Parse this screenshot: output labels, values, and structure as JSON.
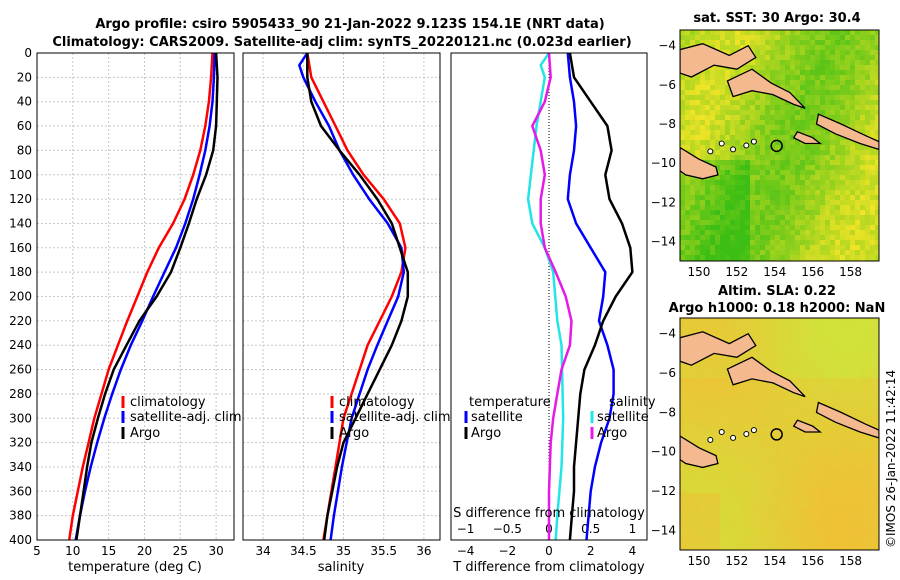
{
  "title_line1": "Argo profile: csiro 5905433_90 21-Jan-2022 9.123S 154.1E (NRT data)",
  "title_line2": "Climatology: CARS2009. Satellite-adj clim: synTS_20220121.nc (0.023d earlier)",
  "copyright": "©IMOS 26-Jan-2022 11:42:14",
  "colors": {
    "climatology": "#ff0000",
    "satellite": "#0000ff",
    "argo": "#000000",
    "s_diff_sat": "#22e5e5",
    "s_diff_argo": "#e619e6"
  },
  "chart_data": [
    {
      "type": "line",
      "name": "temperature-panel",
      "xlabel": "temperature (deg C)",
      "xlim": [
        5,
        32.5
      ],
      "ylim": [
        400,
        0
      ],
      "x_ticks": [
        5,
        10,
        15,
        20,
        25,
        30
      ],
      "y_ticks": [
        0,
        20,
        40,
        60,
        80,
        100,
        120,
        140,
        160,
        180,
        200,
        220,
        240,
        260,
        280,
        300,
        320,
        340,
        360,
        380,
        400
      ],
      "grid": true,
      "legend": [
        "climatology",
        "satellite-adj. clim",
        "Argo"
      ],
      "series": [
        {
          "name": "climatology",
          "color_key": "climatology",
          "points": [
            [
              29.5,
              0
            ],
            [
              29.3,
              20
            ],
            [
              29.0,
              40
            ],
            [
              28.5,
              60
            ],
            [
              27.8,
              80
            ],
            [
              26.8,
              100
            ],
            [
              25.6,
              120
            ],
            [
              24.0,
              140
            ],
            [
              22.0,
              160
            ],
            [
              20.4,
              180
            ],
            [
              19.0,
              200
            ],
            [
              17.6,
              220
            ],
            [
              16.3,
              240
            ],
            [
              15.0,
              260
            ],
            [
              14.0,
              280
            ],
            [
              13.0,
              300
            ],
            [
              12.2,
              320
            ],
            [
              11.4,
              340
            ],
            [
              10.7,
              360
            ],
            [
              10.0,
              380
            ],
            [
              9.5,
              400
            ]
          ]
        },
        {
          "name": "satellite",
          "color_key": "satellite",
          "points": [
            [
              29.8,
              0
            ],
            [
              29.7,
              20
            ],
            [
              29.5,
              40
            ],
            [
              29.1,
              60
            ],
            [
              28.5,
              80
            ],
            [
              27.7,
              100
            ],
            [
              26.8,
              120
            ],
            [
              25.7,
              140
            ],
            [
              24.4,
              160
            ],
            [
              22.8,
              180
            ],
            [
              21.2,
              200
            ],
            [
              19.7,
              220
            ],
            [
              18.1,
              240
            ],
            [
              16.7,
              260
            ],
            [
              15.5,
              280
            ],
            [
              14.4,
              300
            ],
            [
              13.4,
              320
            ],
            [
              12.5,
              340
            ],
            [
              11.7,
              360
            ],
            [
              11.0,
              380
            ],
            [
              10.4,
              400
            ]
          ]
        },
        {
          "name": "Argo",
          "color_key": "argo",
          "points": [
            [
              30.0,
              0
            ],
            [
              30.2,
              20
            ],
            [
              30.1,
              40
            ],
            [
              30.0,
              60
            ],
            [
              29.6,
              80
            ],
            [
              28.6,
              100
            ],
            [
              27.3,
              120
            ],
            [
              26.2,
              140
            ],
            [
              25.0,
              160
            ],
            [
              23.7,
              180
            ],
            [
              21.7,
              200
            ],
            [
              19.3,
              220
            ],
            [
              17.5,
              240
            ],
            [
              15.7,
              260
            ],
            [
              14.5,
              280
            ],
            [
              13.5,
              300
            ],
            [
              12.6,
              320
            ],
            [
              12.0,
              340
            ],
            [
              11.5,
              360
            ],
            [
              11.0,
              380
            ],
            [
              10.5,
              400
            ]
          ]
        }
      ]
    },
    {
      "type": "line",
      "name": "salinity-panel",
      "xlabel": "salinity",
      "xlim": [
        33.75,
        36.2
      ],
      "ylim": [
        400,
        0
      ],
      "x_ticks": [
        34,
        34.5,
        35,
        35.5,
        36
      ],
      "grid": true,
      "legend": [
        "climatology",
        "satellite-adj. clim",
        "Argo"
      ],
      "series": [
        {
          "name": "climatology",
          "color_key": "climatology",
          "points": [
            [
              34.55,
              0
            ],
            [
              34.6,
              20
            ],
            [
              34.75,
              40
            ],
            [
              34.9,
              60
            ],
            [
              35.05,
              80
            ],
            [
              35.25,
              100
            ],
            [
              35.5,
              120
            ],
            [
              35.7,
              140
            ],
            [
              35.77,
              160
            ],
            [
              35.72,
              180
            ],
            [
              35.6,
              200
            ],
            [
              35.45,
              220
            ],
            [
              35.3,
              240
            ],
            [
              35.2,
              260
            ],
            [
              35.1,
              280
            ],
            [
              35.0,
              300
            ],
            [
              34.95,
              320
            ],
            [
              34.9,
              340
            ],
            [
              34.85,
              360
            ],
            [
              34.8,
              380
            ],
            [
              34.75,
              400
            ]
          ]
        },
        {
          "name": "satellite",
          "color_key": "satellite",
          "points": [
            [
              34.55,
              0
            ],
            [
              34.45,
              10
            ],
            [
              34.5,
              20
            ],
            [
              34.65,
              40
            ],
            [
              34.82,
              60
            ],
            [
              34.95,
              80
            ],
            [
              35.12,
              100
            ],
            [
              35.32,
              120
            ],
            [
              35.55,
              140
            ],
            [
              35.72,
              160
            ],
            [
              35.75,
              180
            ],
            [
              35.68,
              200
            ],
            [
              35.55,
              220
            ],
            [
              35.42,
              240
            ],
            [
              35.3,
              260
            ],
            [
              35.2,
              280
            ],
            [
              35.1,
              300
            ],
            [
              35.04,
              320
            ],
            [
              34.98,
              340
            ],
            [
              34.93,
              360
            ],
            [
              34.88,
              380
            ],
            [
              34.84,
              400
            ]
          ]
        },
        {
          "name": "Argo",
          "color_key": "argo",
          "points": [
            [
              34.55,
              0
            ],
            [
              34.55,
              20
            ],
            [
              34.6,
              40
            ],
            [
              34.72,
              60
            ],
            [
              34.95,
              80
            ],
            [
              35.2,
              100
            ],
            [
              35.42,
              120
            ],
            [
              35.6,
              140
            ],
            [
              35.7,
              160
            ],
            [
              35.8,
              180
            ],
            [
              35.8,
              200
            ],
            [
              35.72,
              220
            ],
            [
              35.6,
              240
            ],
            [
              35.45,
              260
            ],
            [
              35.3,
              280
            ],
            [
              35.15,
              300
            ],
            [
              35.0,
              320
            ],
            [
              34.92,
              340
            ],
            [
              34.86,
              360
            ],
            [
              34.8,
              380
            ],
            [
              34.76,
              400
            ]
          ]
        }
      ]
    },
    {
      "type": "line",
      "name": "difference-panel",
      "xlabel": "T difference from climatology",
      "xlabel_top": "S difference from climatology",
      "xlim": [
        -4.7,
        4.7
      ],
      "ylim": [
        400,
        0
      ],
      "x_ticks": [
        -4,
        -2,
        0,
        2,
        4
      ],
      "x_ticks_top": [
        -1,
        -0.5,
        0,
        0.5,
        1
      ],
      "grid": false,
      "legend_left_title": "temperature",
      "legend_right_title": "salinity",
      "legend_left": [
        "satellite",
        "Argo"
      ],
      "legend_right": [
        "satellite",
        "Argo"
      ],
      "series": [
        {
          "name": "T satellite",
          "color_key": "satellite",
          "points": [
            [
              0.9,
              0
            ],
            [
              1.0,
              20
            ],
            [
              1.2,
              40
            ],
            [
              1.3,
              60
            ],
            [
              1.2,
              80
            ],
            [
              1.0,
              100
            ],
            [
              0.9,
              120
            ],
            [
              1.3,
              140
            ],
            [
              2.0,
              160
            ],
            [
              2.7,
              180
            ],
            [
              2.6,
              200
            ],
            [
              2.4,
              220
            ],
            [
              2.8,
              240
            ],
            [
              3.1,
              260
            ],
            [
              3.1,
              280
            ],
            [
              2.9,
              300
            ],
            [
              2.5,
              320
            ],
            [
              2.2,
              340
            ],
            [
              2.0,
              360
            ],
            [
              1.9,
              380
            ],
            [
              1.8,
              400
            ]
          ]
        },
        {
          "name": "T Argo",
          "color_key": "argo",
          "points": [
            [
              1.0,
              0
            ],
            [
              1.2,
              20
            ],
            [
              2.0,
              40
            ],
            [
              2.8,
              60
            ],
            [
              3.0,
              80
            ],
            [
              2.7,
              100
            ],
            [
              2.9,
              120
            ],
            [
              3.5,
              140
            ],
            [
              3.9,
              160
            ],
            [
              4.0,
              180
            ],
            [
              3.2,
              200
            ],
            [
              2.6,
              220
            ],
            [
              2.2,
              240
            ],
            [
              1.7,
              260
            ],
            [
              1.5,
              280
            ],
            [
              1.4,
              300
            ],
            [
              1.3,
              320
            ],
            [
              1.2,
              340
            ],
            [
              1.2,
              360
            ],
            [
              1.1,
              380
            ],
            [
              1.0,
              400
            ]
          ]
        },
        {
          "name": "S satellite",
          "color_key": "s_diff_sat",
          "points": [
            [
              0.0,
              0
            ],
            [
              -0.1,
              10
            ],
            [
              -0.05,
              20
            ],
            [
              -0.15,
              60
            ],
            [
              -0.25,
              120
            ],
            [
              -0.2,
              140
            ],
            [
              -0.05,
              160
            ],
            [
              0.05,
              180
            ],
            [
              0.1,
              220
            ],
            [
              0.15,
              240
            ],
            [
              0.17,
              300
            ],
            [
              0.15,
              340
            ],
            [
              0.1,
              380
            ],
            [
              0.08,
              400
            ]
          ]
        },
        {
          "name": "S Argo",
          "color_key": "s_diff_argo",
          "points": [
            [
              0.0,
              0
            ],
            [
              0.02,
              20
            ],
            [
              -0.05,
              40
            ],
            [
              -0.2,
              60
            ],
            [
              -0.1,
              80
            ],
            [
              -0.05,
              100
            ],
            [
              -0.1,
              120
            ],
            [
              -0.1,
              140
            ],
            [
              -0.05,
              160
            ],
            [
              0.08,
              180
            ],
            [
              0.2,
              200
            ],
            [
              0.27,
              220
            ],
            [
              0.25,
              240
            ],
            [
              0.15,
              260
            ],
            [
              0.1,
              280
            ],
            [
              0.05,
              300
            ],
            [
              0.02,
              320
            ],
            [
              0.0,
              360
            ],
            [
              0.0,
              400
            ]
          ]
        }
      ]
    },
    {
      "type": "heatmap",
      "name": "sst-map",
      "title": "sat. SST: 30 Argo: 30.4",
      "x_ticks": [
        150,
        152,
        154,
        156,
        158
      ],
      "y_ticks": [
        -4,
        -6,
        -8,
        -10,
        -12,
        -14
      ],
      "xlim": [
        149,
        159.5
      ],
      "ylim": [
        -15,
        -3.2
      ],
      "marker": [
        154.1,
        -9.12
      ]
    },
    {
      "type": "heatmap",
      "name": "sla-map",
      "title_line1": "Altim. SLA: 0.22",
      "title_line2": "Argo h1000: 0.18 h2000: NaN",
      "x_ticks": [
        150,
        152,
        154,
        156,
        158
      ],
      "y_ticks": [
        -4,
        -6,
        -8,
        -10,
        -12,
        -14
      ],
      "xlim": [
        149,
        159.5
      ],
      "ylim": [
        -15,
        -3.2
      ],
      "marker": [
        154.1,
        -9.12
      ]
    }
  ]
}
